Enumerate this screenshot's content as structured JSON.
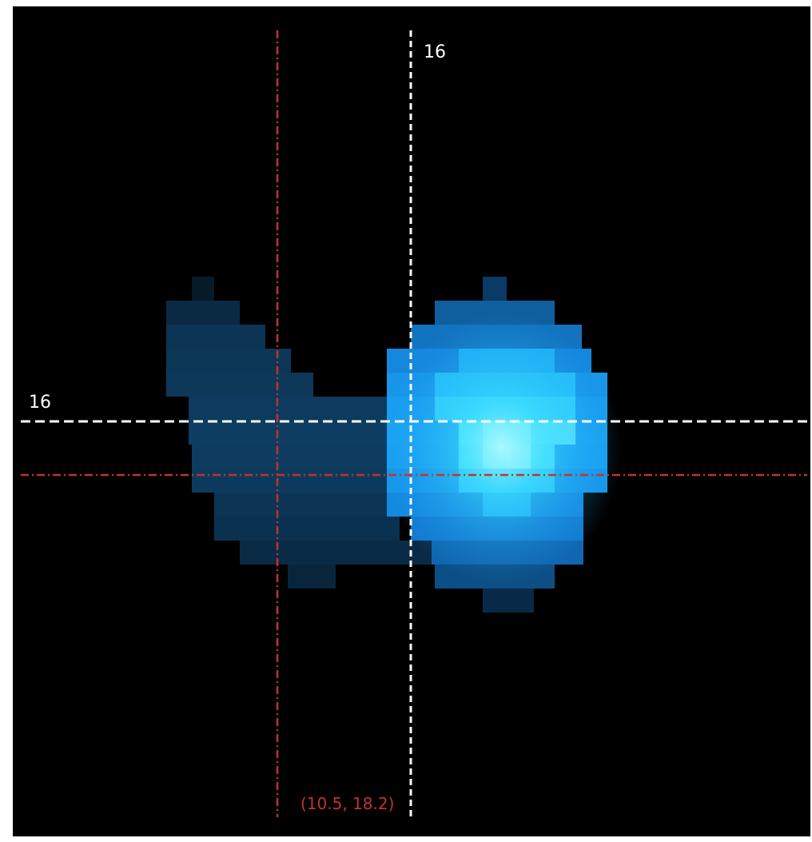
{
  "image": {
    "background_color": "#000000",
    "blob_colors": {
      "dark": "#0b3350",
      "mid": "#0e5c9a",
      "bright": "#1d9bf0",
      "core": "#7ef2ff"
    },
    "white_crosshair": {
      "color": "#ffffff",
      "horizontal_label": "16",
      "vertical_label": "16"
    },
    "red_crosshair": {
      "color": "#c0342d",
      "coordinate_label": "(10.5, 18.2)"
    }
  }
}
